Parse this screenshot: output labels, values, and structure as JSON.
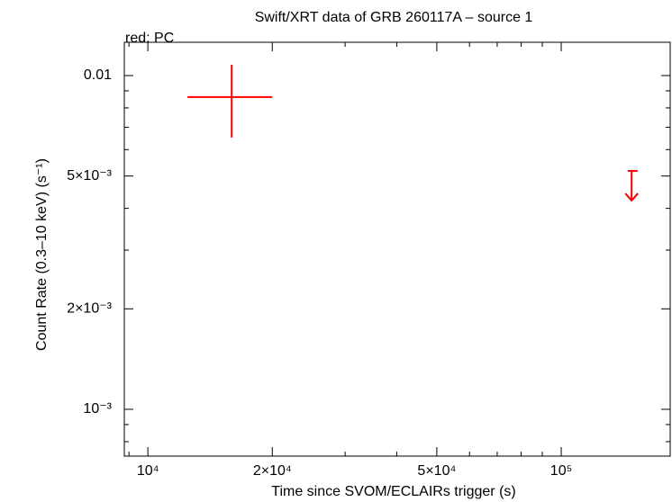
{
  "chart_data": {
    "type": "scatter",
    "title": "Swift/XRT data of GRB 260117A – source 1",
    "subtitle": "red: PC",
    "x_label": "Time since SVOM/ECLAIRs trigger (s)",
    "y_label": "Count Rate (0.3–10 keV) (s⁻¹)",
    "x_log": true,
    "y_log": true,
    "xlim": [
      8770,
      183500
    ],
    "ylim": [
      0.000724,
      0.01258
    ],
    "xticks": [
      {
        "value": 10000,
        "label": "10⁴"
      },
      {
        "value": 20000,
        "label": "2×10⁴"
      },
      {
        "value": 50000,
        "label": "5×10⁴"
      },
      {
        "value": 100000,
        "label": "10⁵"
      }
    ],
    "x_minor_ticks": [
      9000,
      30000,
      40000,
      60000,
      70000,
      80000,
      90000
    ],
    "yticks": [
      {
        "value": 0.001,
        "label": "10⁻³"
      },
      {
        "value": 0.002,
        "label": "2×10⁻³"
      },
      {
        "value": 0.005,
        "label": "5×10⁻³"
      },
      0.01
    ],
    "y_minor_ticks": [
      0.0008,
      0.0009,
      0.003,
      0.004,
      0.006,
      0.007,
      0.008,
      0.009
    ],
    "series": [
      {
        "color": "#ff0000",
        "x": [
          15950
        ],
        "x_low": [
          12470
        ],
        "x_high": [
          20000
        ],
        "y": [
          0.00862
        ],
        "y_low": [
          0.00652
        ],
        "y_high": [
          0.01077
        ]
      },
      {
        "color": "#ff0000",
        "upper_limit": true,
        "x": [
          148000
        ],
        "x_low": [
          144800
        ],
        "x_high": [
          153000
        ],
        "y": [
          0.00518
        ]
      }
    ]
  }
}
